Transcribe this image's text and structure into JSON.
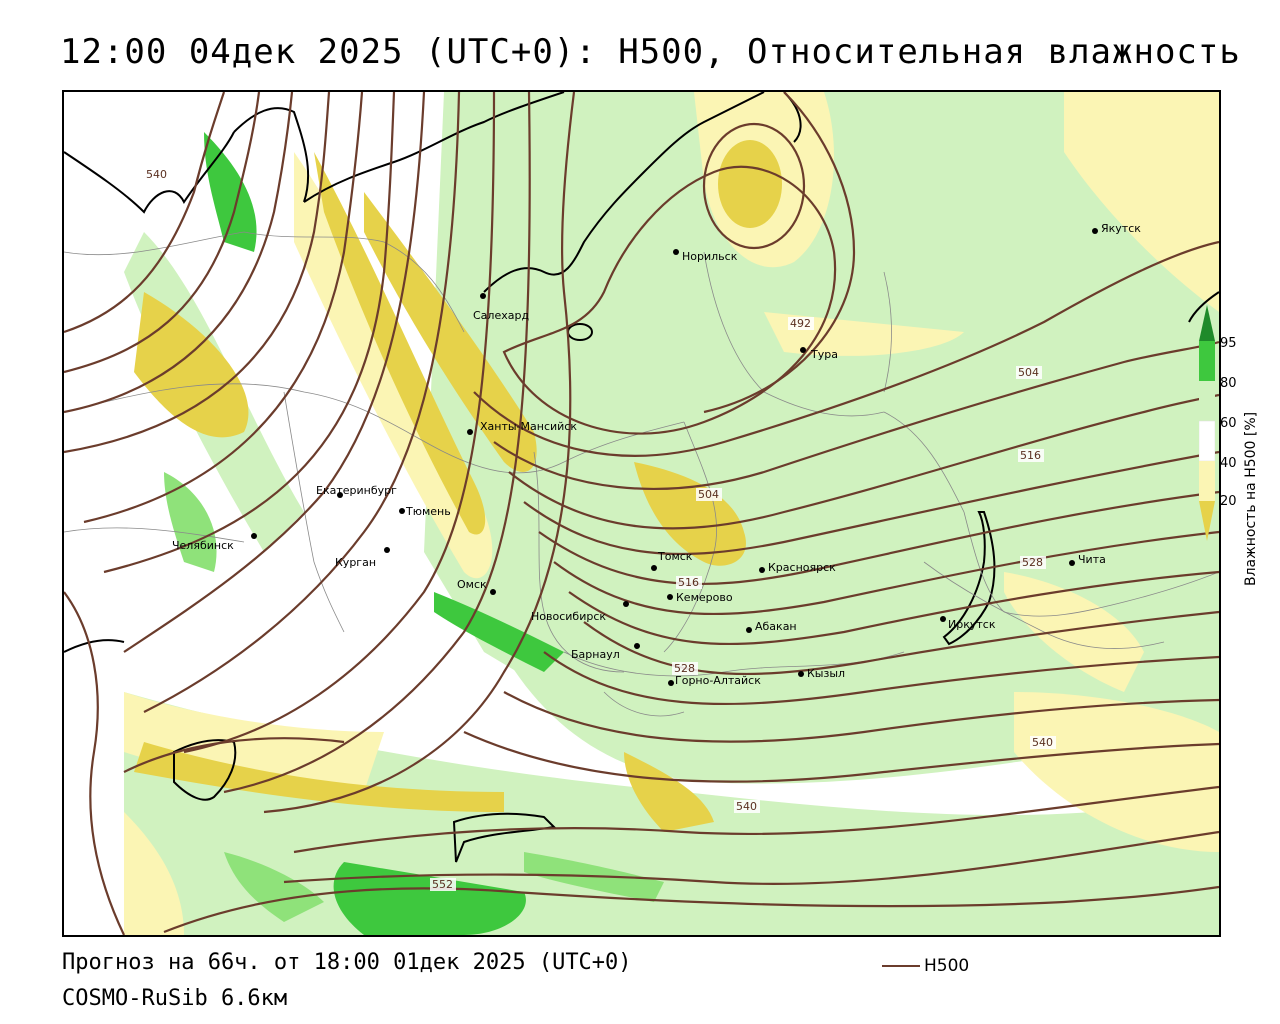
{
  "title": "12:00 04дек 2025 (UTC+0): H500, Относительная влажность",
  "forecast_info": "Прогноз на 66ч. от 18:00 01дек 2025 (UTC+0)",
  "model": "COSMO-RuSib 6.6км",
  "h500_legend_label": "H500",
  "colors": {
    "contour": "#6b3c2c",
    "dry_dark": "#e6d24a",
    "dry_light": "#fbf5b4",
    "moist_light": "#d0f2bf",
    "moist_mid": "#8fe27a",
    "moist_dark": "#3ec83e",
    "saturated": "#1f8a2a"
  },
  "legend": {
    "title": "Влажность на H500 [%]",
    "ticks": [
      "95",
      "80",
      "60",
      "40",
      "20"
    ]
  },
  "contour_labels": [
    "540",
    "492",
    "504",
    "504",
    "516",
    "516",
    "528",
    "528",
    "540",
    "540",
    "552"
  ],
  "cities": [
    {
      "name": "Норильск"
    },
    {
      "name": "Якутск"
    },
    {
      "name": "Салехард"
    },
    {
      "name": "Тура"
    },
    {
      "name": "Ханты-Мансийск"
    },
    {
      "name": "Екатеринбург"
    },
    {
      "name": "Тюмень"
    },
    {
      "name": "Челябинск"
    },
    {
      "name": "Курган"
    },
    {
      "name": "Омск"
    },
    {
      "name": "Новосибирск"
    },
    {
      "name": "Томск"
    },
    {
      "name": "Кемерово"
    },
    {
      "name": "Красноярск"
    },
    {
      "name": "Абакан"
    },
    {
      "name": "Барнаул"
    },
    {
      "name": "Горно-Алтайск"
    },
    {
      "name": "Кызыл"
    },
    {
      "name": "Иркутск"
    },
    {
      "name": "Чита"
    }
  ]
}
